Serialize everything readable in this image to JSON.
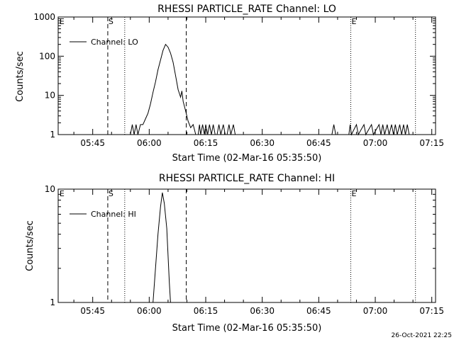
{
  "footer": {
    "timestamp": "26-Oct-2021 22:25"
  },
  "chart_data": [
    {
      "type": "line",
      "title": "RHESSI PARTICLE_RATE Channel: LO",
      "xlabel": "Start Time (02-Mar-16 05:35:50)",
      "ylabel": "Counts/sec",
      "y_scale": "log",
      "xlim": [
        "05:35:50",
        "07:16:00"
      ],
      "ylim": [
        1,
        1000
      ],
      "x_ticks": [
        "05:45",
        "06:00",
        "06:15",
        "06:30",
        "06:45",
        "07:00",
        "07:15"
      ],
      "y_ticks": [
        "1",
        "10",
        "100",
        "1000"
      ],
      "legend": {
        "placement": "top-left",
        "label": "Channel: LO"
      },
      "markers": [
        {
          "label": "E",
          "time": "05:36:00",
          "style": "dotted"
        },
        {
          "label": "S",
          "time": "05:49:00",
          "style": "dotted"
        }
      ],
      "vlines": [
        {
          "time": "05:49:00",
          "style": "dashed"
        },
        {
          "time": "05:53:30",
          "style": "dotted"
        },
        {
          "time": "06:09:50",
          "style": "dashed"
        },
        {
          "time": "06:53:30",
          "style": "dotted"
        },
        {
          "time": "07:10:40",
          "style": "dotted"
        }
      ],
      "e_marker": {
        "label": "E",
        "time": "06:53:30"
      },
      "series": [
        {
          "color": "#000000",
          "points": [
            [
              "05:55:00",
              1
            ],
            [
              "05:55:30",
              1.8
            ],
            [
              "05:56:00",
              1
            ],
            [
              "05:56:30",
              1.8
            ],
            [
              "05:57:00",
              1
            ],
            [
              "05:57:40",
              1.8
            ],
            [
              "05:58:20",
              1.8
            ],
            [
              "05:59:00",
              2.5
            ],
            [
              "05:59:40",
              3.5
            ],
            [
              "06:00:20",
              6
            ],
            [
              "06:01:00",
              12
            ],
            [
              "06:01:40",
              22
            ],
            [
              "06:02:20",
              45
            ],
            [
              "06:03:00",
              80
            ],
            [
              "06:03:40",
              140
            ],
            [
              "06:04:20",
              200
            ],
            [
              "06:05:00",
              170
            ],
            [
              "06:05:40",
              120
            ],
            [
              "06:06:20",
              70
            ],
            [
              "06:07:00",
              32
            ],
            [
              "06:07:40",
              14
            ],
            [
              "06:08:20",
              9
            ],
            [
              "06:08:40",
              13
            ],
            [
              "06:09:00",
              7
            ],
            [
              "06:09:40",
              4
            ],
            [
              "06:10:20",
              2.2
            ],
            [
              "06:11:00",
              1.5
            ],
            [
              "06:11:40",
              1.8
            ],
            [
              "06:12:20",
              1
            ],
            [
              "06:13:00",
              1
            ],
            [
              "06:13:20",
              1.8
            ],
            [
              "06:13:40",
              1
            ],
            [
              "06:14:10",
              1.8
            ],
            [
              "06:14:40",
              1
            ],
            [
              "06:15:00",
              1.8
            ],
            [
              "06:15:30",
              1
            ],
            [
              "06:16:00",
              1.8
            ],
            [
              "06:16:30",
              1
            ],
            [
              "06:17:00",
              1.8
            ],
            [
              "06:17:30",
              1
            ],
            [
              "06:18:00",
              1
            ],
            [
              "06:18:30",
              1.8
            ],
            [
              "06:19:00",
              1
            ],
            [
              "06:19:40",
              1.8
            ],
            [
              "06:20:10",
              1
            ],
            [
              "06:20:40",
              1
            ],
            [
              "06:21:10",
              1.8
            ],
            [
              "06:21:40",
              1
            ],
            [
              "06:22:20",
              1.8
            ],
            [
              "06:22:50",
              1
            ],
            [
              "06:48:30",
              1
            ],
            [
              "06:49:00",
              1.8
            ],
            [
              "06:49:30",
              1
            ],
            [
              "06:53:00",
              1
            ],
            [
              "06:53:20",
              1.8
            ],
            [
              "06:53:40",
              1
            ],
            [
              "06:55:00",
              1.8
            ],
            [
              "06:55:30",
              1
            ],
            [
              "06:57:00",
              1.8
            ],
            [
              "06:57:30",
              1
            ],
            [
              "06:59:00",
              1.8
            ],
            [
              "06:59:30",
              1
            ],
            [
              "07:01:00",
              1.8
            ],
            [
              "07:01:30",
              1
            ],
            [
              "07:02:00",
              1.8
            ],
            [
              "07:02:30",
              1
            ],
            [
              "07:03:10",
              1.8
            ],
            [
              "07:03:40",
              1
            ],
            [
              "07:04:20",
              1.8
            ],
            [
              "07:04:50",
              1
            ],
            [
              "07:05:20",
              1.8
            ],
            [
              "07:05:50",
              1
            ],
            [
              "07:06:30",
              1.8
            ],
            [
              "07:07:00",
              1
            ],
            [
              "07:07:30",
              1.8
            ],
            [
              "07:08:00",
              1
            ],
            [
              "07:08:30",
              1.8
            ],
            [
              "07:09:00",
              1
            ]
          ]
        }
      ]
    },
    {
      "type": "line",
      "title": "RHESSI PARTICLE_RATE Channel: HI",
      "xlabel": "Start Time (02-Mar-16 05:35:50)",
      "ylabel": "Counts/sec",
      "y_scale": "log",
      "xlim": [
        "05:35:50",
        "07:16:00"
      ],
      "ylim": [
        1,
        10
      ],
      "x_ticks": [
        "05:45",
        "06:00",
        "06:15",
        "06:30",
        "06:45",
        "07:00",
        "07:15"
      ],
      "y_ticks": [
        "1",
        "10"
      ],
      "legend": {
        "placement": "top-left",
        "label": "Channel: HI"
      },
      "markers": [
        {
          "label": "E",
          "time": "05:36:00",
          "style": "dotted"
        },
        {
          "label": "S",
          "time": "05:49:00",
          "style": "dotted"
        }
      ],
      "vlines": [
        {
          "time": "05:49:00",
          "style": "dashed"
        },
        {
          "time": "05:53:30",
          "style": "dotted"
        },
        {
          "time": "06:09:50",
          "style": "dashed"
        },
        {
          "time": "06:53:30",
          "style": "dotted"
        },
        {
          "time": "07:10:40",
          "style": "dotted"
        }
      ],
      "e_marker": {
        "label": "E",
        "time": "06:53:30"
      },
      "series": [
        {
          "color": "#000000",
          "points": [
            [
              "06:01:00",
              1
            ],
            [
              "06:01:40",
              2
            ],
            [
              "06:02:20",
              4
            ],
            [
              "06:03:00",
              7
            ],
            [
              "06:03:30",
              9.3
            ],
            [
              "06:04:00",
              7.5
            ],
            [
              "06:04:40",
              4.5
            ],
            [
              "06:05:20",
              1.5
            ],
            [
              "06:05:40",
              1
            ]
          ]
        }
      ]
    }
  ]
}
